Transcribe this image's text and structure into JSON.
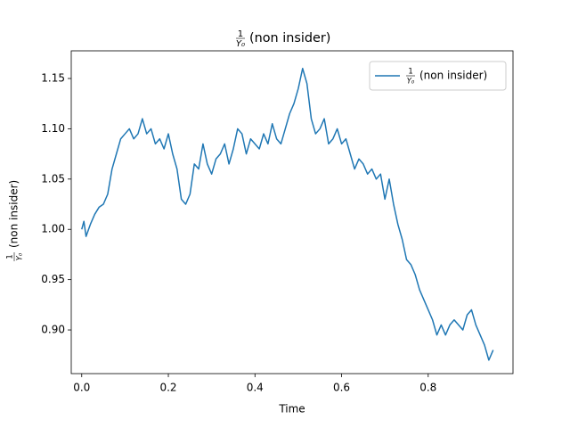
{
  "chart_data": {
    "type": "line",
    "title": {
      "numerator": "1",
      "denominator": "Y₀",
      "text": "(non insider)"
    },
    "x_label": "Time",
    "y_label": {
      "numerator": "1",
      "denominator": "Y₀",
      "text": "(non insider)"
    },
    "x": [
      0,
      0.005,
      0.01,
      0.02,
      0.03,
      0.04,
      0.05,
      0.055,
      0.06,
      0.07,
      0.08,
      0.09,
      0.1,
      0.11,
      0.12,
      0.13,
      0.14,
      0.15,
      0.16,
      0.17,
      0.18,
      0.19,
      0.2,
      0.21,
      0.22,
      0.23,
      0.24,
      0.25,
      0.26,
      0.27,
      0.28,
      0.29,
      0.3,
      0.31,
      0.32,
      0.33,
      0.34,
      0.35,
      0.36,
      0.37,
      0.38,
      0.39,
      0.4,
      0.41,
      0.42,
      0.43,
      0.44,
      0.45,
      0.46,
      0.47,
      0.48,
      0.49,
      0.5,
      0.51,
      0.52,
      0.53,
      0.54,
      0.55,
      0.56,
      0.57,
      0.58,
      0.59,
      0.6,
      0.61,
      0.62,
      0.63,
      0.64,
      0.65,
      0.66,
      0.67,
      0.68,
      0.69,
      0.7,
      0.71,
      0.72,
      0.73,
      0.74,
      0.75,
      0.76,
      0.77,
      0.78,
      0.79,
      0.8,
      0.81,
      0.82,
      0.83,
      0.84,
      0.85,
      0.86,
      0.87,
      0.88,
      0.89,
      0.9,
      0.91,
      0.92,
      0.93,
      0.94,
      0.95
    ],
    "series": [
      {
        "name": {
          "numerator": "1",
          "denominator": "Y₀",
          "text": "(non insider)"
        },
        "color": "#1f77b4",
        "values": [
          1.0,
          1.008,
          0.993,
          1.005,
          1.015,
          1.022,
          1.025,
          1.03,
          1.035,
          1.06,
          1.075,
          1.09,
          1.095,
          1.1,
          1.09,
          1.095,
          1.11,
          1.095,
          1.1,
          1.085,
          1.09,
          1.08,
          1.095,
          1.075,
          1.06,
          1.03,
          1.025,
          1.035,
          1.065,
          1.06,
          1.085,
          1.065,
          1.055,
          1.07,
          1.075,
          1.085,
          1.065,
          1.08,
          1.1,
          1.095,
          1.075,
          1.09,
          1.085,
          1.08,
          1.095,
          1.085,
          1.105,
          1.09,
          1.085,
          1.1,
          1.115,
          1.125,
          1.14,
          1.16,
          1.145,
          1.11,
          1.095,
          1.1,
          1.11,
          1.085,
          1.09,
          1.1,
          1.085,
          1.09,
          1.075,
          1.06,
          1.07,
          1.065,
          1.055,
          1.06,
          1.05,
          1.055,
          1.03,
          1.05,
          1.025,
          1.005,
          0.99,
          0.97,
          0.965,
          0.955,
          0.94,
          0.93,
          0.92,
          0.91,
          0.895,
          0.905,
          0.895,
          0.905,
          0.91,
          0.905,
          0.9,
          0.915,
          0.92,
          0.905,
          0.895,
          0.885,
          0.87,
          0.88
        ]
      }
    ],
    "xlim": [
      -0.0242,
      0.9958
    ],
    "ylim": [
      0.8566,
      1.1775
    ],
    "xticks": [
      {
        "value": 0,
        "label": "0.0"
      },
      0.2,
      0.4,
      0.6,
      0.8
    ],
    "yticks": [
      {
        "value": 0.9,
        "label": "0.90"
      },
      0.95,
      {
        "value": 1.0,
        "label": "1.00"
      },
      1.05,
      {
        "value": 1.1,
        "label": "1.10"
      },
      1.15
    ],
    "legend": "upper right"
  }
}
